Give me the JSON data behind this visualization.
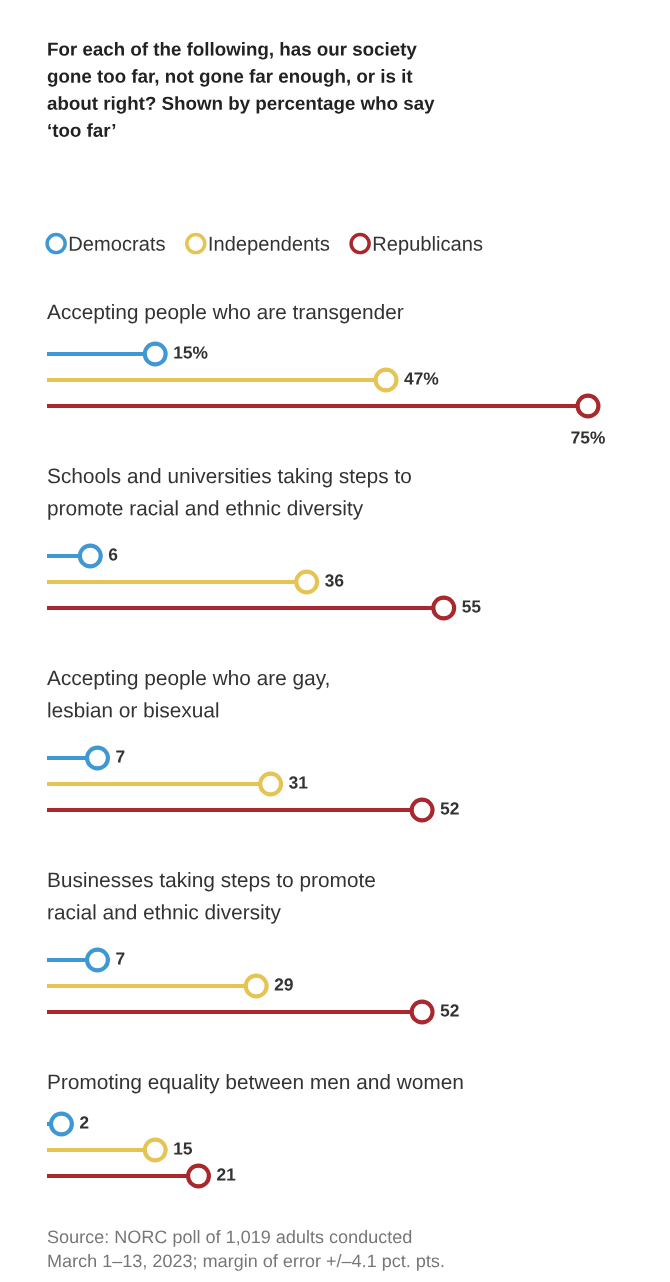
{
  "chart_data": {
    "type": "lollipop",
    "orientation": "horizontal",
    "title": "For each of the following, has our society\ngone too far, not gone far enough, or is it\nabout right? Shown by percentage who say\n‘too far’",
    "categories": [
      "Accepting people who are transgender",
      "Schools and universities taking steps to\npromote racial and ethnic diversity",
      "Accepting people who are gay,\nlesbian or bisexual",
      "Businesses taking steps to promote\nracial and ethnic diversity",
      "Promoting equality between men and women"
    ],
    "series": [
      {
        "name": "Democrats",
        "color": "#3f97d3",
        "values": [
          15,
          6,
          7,
          7,
          2
        ],
        "value_labels": [
          "15%",
          "6",
          "7",
          "7",
          "2"
        ]
      },
      {
        "name": "Independents",
        "color": "#e5c453",
        "values": [
          47,
          36,
          31,
          29,
          15
        ],
        "value_labels": [
          "47%",
          "36",
          "31",
          "29",
          "15"
        ]
      },
      {
        "name": "Republicans",
        "color": "#a8282e",
        "values": [
          75,
          55,
          52,
          52,
          21
        ],
        "value_labels": [
          "75%",
          "55",
          "52",
          "52",
          "21"
        ]
      }
    ],
    "marker": "circle",
    "legend": "top left",
    "annotations": [
      "Source: NORC poll of 1,019 adults conducted\nMarch 1–13, 2023; margin of error +/–4.1 pct. pts."
    ]
  }
}
